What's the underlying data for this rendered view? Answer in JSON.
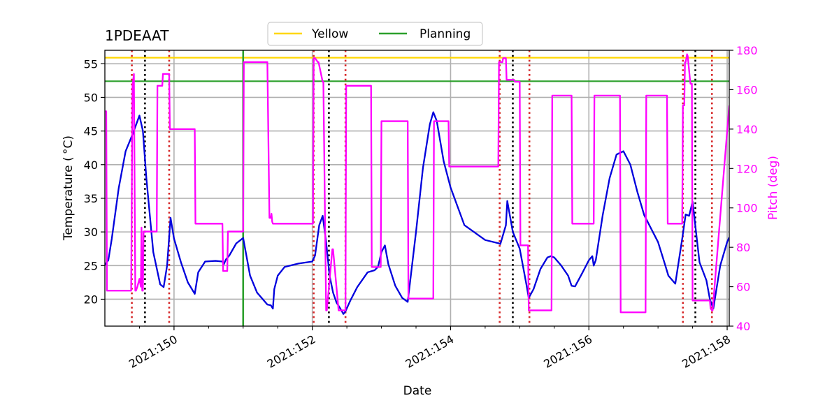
{
  "chart_data": {
    "type": "line",
    "title": "1PDEAAT",
    "xlabel": "Date",
    "ylabel": "Temperature ($^\\circ$C)",
    "ylabel_display": "Temperature ( °C)",
    "y2label": "Pitch (deg)",
    "xlim": [
      149.0,
      158.03
    ],
    "ylim": [
      16.0,
      57.0
    ],
    "y2lim": [
      40,
      180
    ],
    "x_tick_values": [
      150,
      152,
      154,
      156,
      158
    ],
    "x_tick_labels": [
      "2021:150",
      "2021:152",
      "2021:154",
      "2021:156",
      "2021:158"
    ],
    "x_minor_ticks": [
      149.5,
      150.5,
      151.0,
      151.5,
      152.5,
      153.0,
      153.5,
      154.5,
      155.0,
      155.5,
      156.5,
      157.0,
      157.5
    ],
    "y_ticks": [
      20,
      25,
      30,
      35,
      40,
      45,
      50,
      55
    ],
    "y2_ticks": [
      40,
      60,
      80,
      100,
      120,
      140,
      160,
      180
    ],
    "grid": true,
    "legend_position": "top-center",
    "legend": [
      {
        "name": "Yellow",
        "color": "#ffd700"
      },
      {
        "name": "Planning",
        "color": "#2ca02c"
      }
    ],
    "hlines": [
      {
        "name": "Yellow",
        "y": 55.9,
        "color": "#ffd700"
      },
      {
        "name": "Planning",
        "y": 52.4,
        "color": "#2ca02c"
      }
    ],
    "vlines": [
      {
        "x": 149.39,
        "color": "#d62728",
        "style": "dotted"
      },
      {
        "x": 149.58,
        "color": "#000000",
        "style": "dotted"
      },
      {
        "x": 149.93,
        "color": "#d62728",
        "style": "dotted"
      },
      {
        "x": 151.0,
        "color": "#2ca02c",
        "style": "solid"
      },
      {
        "x": 152.02,
        "color": "#d62728",
        "style": "dotted"
      },
      {
        "x": 152.24,
        "color": "#000000",
        "style": "dotted"
      },
      {
        "x": 152.48,
        "color": "#d62728",
        "style": "dotted"
      },
      {
        "x": 154.71,
        "color": "#d62728",
        "style": "dotted"
      },
      {
        "x": 154.9,
        "color": "#000000",
        "style": "dotted"
      },
      {
        "x": 155.14,
        "color": "#d62728",
        "style": "dotted"
      },
      {
        "x": 157.36,
        "color": "#d62728",
        "style": "dotted"
      },
      {
        "x": 157.54,
        "color": "#000000",
        "style": "dotted"
      },
      {
        "x": 157.78,
        "color": "#d62728",
        "style": "dotted"
      }
    ],
    "series": [
      {
        "name": "temperature",
        "axis": "left",
        "color": "#0000dd",
        "x": [
          149.0,
          149.05,
          149.1,
          149.2,
          149.3,
          149.4,
          149.5,
          149.55,
          149.6,
          149.7,
          149.8,
          149.85,
          149.9,
          149.95,
          150.0,
          150.1,
          150.2,
          150.3,
          150.35,
          150.45,
          150.6,
          150.7,
          150.72,
          150.75,
          150.8,
          150.9,
          151.0,
          151.1,
          151.2,
          151.3,
          151.35,
          151.4,
          151.43,
          151.45,
          151.5,
          151.6,
          151.8,
          152.0,
          152.04,
          152.1,
          152.15,
          152.2,
          152.25,
          152.3,
          152.35,
          152.4,
          152.45,
          152.48,
          152.55,
          152.65,
          152.8,
          152.9,
          152.95,
          153.0,
          153.05,
          153.1,
          153.2,
          153.3,
          153.38,
          153.5,
          153.6,
          153.7,
          153.75,
          153.8,
          153.9,
          154.0,
          154.2,
          154.5,
          154.7,
          154.72,
          154.8,
          154.82,
          154.9,
          155.0,
          155.1,
          155.13,
          155.2,
          155.3,
          155.4,
          155.45,
          155.5,
          155.6,
          155.7,
          155.75,
          155.8,
          155.9,
          156.0,
          156.05,
          156.07,
          156.1,
          156.2,
          156.3,
          156.4,
          156.5,
          156.6,
          156.7,
          156.8,
          156.9,
          157.0,
          157.1,
          157.15,
          157.25,
          157.35,
          157.4,
          157.45,
          157.5,
          157.6,
          157.7,
          157.75,
          157.8,
          157.9,
          158.0,
          158.03
        ],
        "y": [
          25.1,
          25.8,
          29.0,
          36.5,
          42.0,
          44.5,
          47.3,
          45.0,
          38.0,
          27.0,
          22.2,
          21.8,
          25.0,
          32.1,
          29.0,
          25.5,
          22.5,
          20.8,
          24.0,
          25.6,
          25.7,
          25.6,
          25.2,
          25.9,
          26.5,
          28.3,
          29.1,
          23.5,
          21.0,
          19.8,
          19.2,
          19.1,
          18.6,
          21.5,
          23.5,
          24.8,
          25.3,
          25.6,
          26.5,
          31.0,
          32.4,
          28.5,
          23.5,
          21.0,
          19.5,
          18.7,
          17.8,
          18.2,
          19.8,
          21.8,
          24.0,
          24.3,
          24.8,
          27.0,
          28.0,
          25.2,
          22.0,
          20.2,
          19.6,
          30.0,
          39.5,
          46.0,
          47.8,
          46.5,
          40.5,
          36.6,
          31.0,
          28.8,
          28.3,
          28.2,
          31.0,
          34.6,
          30.0,
          27.5,
          22.0,
          20.2,
          21.5,
          24.5,
          26.2,
          26.4,
          26.2,
          25.0,
          23.5,
          22.0,
          21.9,
          23.8,
          25.8,
          26.4,
          25.0,
          25.8,
          32.5,
          38.0,
          41.5,
          42.0,
          40.0,
          36.0,
          32.5,
          30.5,
          28.5,
          25.2,
          23.5,
          22.3,
          29.0,
          32.6,
          32.4,
          34.5,
          25.5,
          22.8,
          20.0,
          18.6,
          25.0,
          28.5,
          29.2
        ]
      },
      {
        "name": "pitch",
        "axis": "right",
        "color": "#ff00ff",
        "x": [
          149.0,
          149.02,
          149.03,
          149.38,
          149.4,
          149.42,
          149.44,
          149.45,
          149.47,
          149.5,
          149.52,
          149.53,
          149.54,
          149.55,
          149.56,
          149.57,
          149.59,
          149.6,
          149.75,
          149.76,
          149.83,
          149.84,
          149.93,
          149.94,
          150.3,
          150.31,
          150.7,
          150.71,
          150.77,
          150.78,
          151.0,
          151.01,
          151.35,
          151.38,
          151.4,
          151.41,
          151.42,
          151.43,
          152.01,
          152.02,
          152.04,
          152.08,
          152.09,
          152.15,
          152.16,
          152.2,
          152.21,
          152.29,
          152.3,
          152.38,
          152.39,
          152.48,
          152.49,
          152.85,
          152.86,
          152.99,
          153.0,
          153.38,
          153.39,
          153.75,
          153.76,
          153.97,
          153.98,
          154.69,
          154.7,
          154.75,
          154.76,
          154.8,
          154.81,
          154.92,
          154.93,
          155.0,
          155.01,
          155.12,
          155.13,
          155.46,
          155.47,
          155.75,
          155.76,
          156.07,
          156.08,
          156.45,
          156.46,
          156.82,
          156.83,
          157.13,
          157.14,
          157.35,
          157.36,
          157.38,
          157.39,
          157.4,
          157.42,
          157.43,
          157.46,
          157.47,
          157.49,
          157.5,
          157.75,
          157.76,
          157.78,
          157.79,
          158.03
        ],
        "y": [
          149,
          149,
          58,
          58,
          162,
          168,
          58,
          58,
          60,
          64,
          60,
          90,
          58,
          58,
          88,
          88,
          88,
          88,
          88,
          162,
          162,
          168,
          168,
          140,
          140,
          92,
          92,
          68,
          68,
          88,
          88,
          174,
          174,
          95,
          95,
          97,
          93,
          92,
          92,
          176,
          176,
          174,
          174,
          164,
          164,
          48,
          48,
          79,
          79,
          48,
          48,
          48,
          162,
          162,
          70,
          70,
          144,
          144,
          54,
          54,
          144,
          144,
          121,
          121,
          174,
          174,
          176,
          176,
          165,
          165,
          164,
          164,
          81,
          81,
          48,
          48,
          157,
          157,
          92,
          92,
          157,
          157,
          47,
          47,
          157,
          157,
          92,
          92,
          152,
          152,
          174,
          174,
          178,
          177,
          166,
          163,
          163,
          53,
          53,
          49,
          48,
          48,
          152
        ]
      }
    ]
  }
}
